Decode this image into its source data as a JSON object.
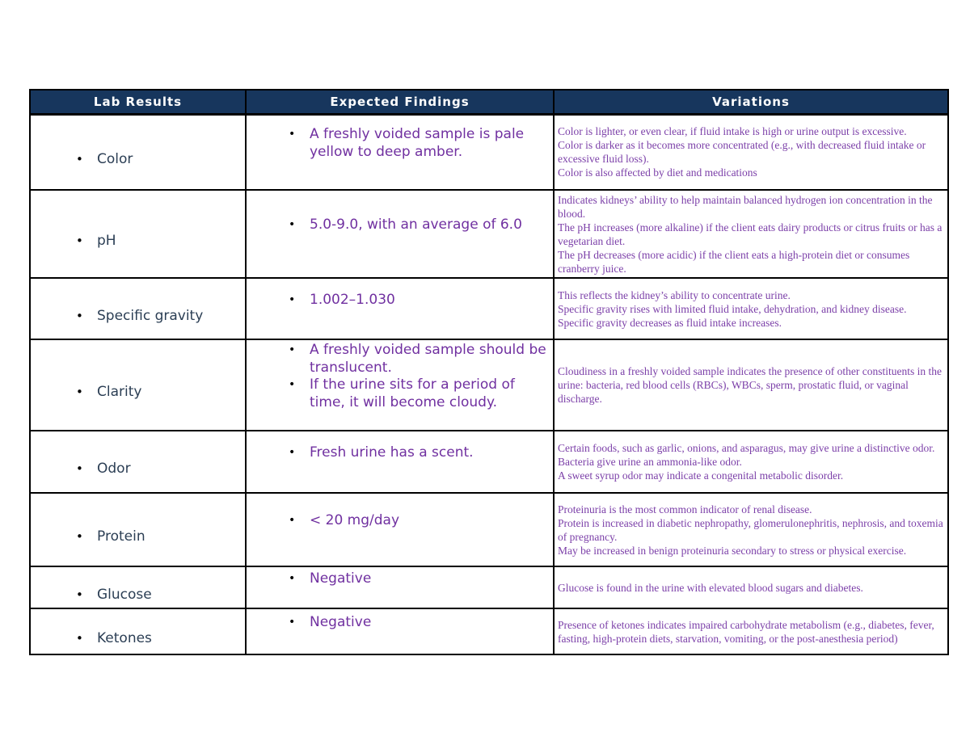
{
  "colors": {
    "header_bg": "#17365D",
    "header_text": "#FFFFFF",
    "label_color": "#2B3E54",
    "findings_color": "#7030A0",
    "variations_color": "#7B3FA8",
    "border_color": "#000000",
    "page_bg": "#FFFFFF"
  },
  "table": {
    "columns": [
      {
        "label": "Lab Results"
      },
      {
        "label": "Expected Findings"
      },
      {
        "label": "Variations"
      }
    ],
    "rows": [
      {
        "label": "Color",
        "findings": [
          "A freshly voided sample is pale yellow to deep amber."
        ],
        "variations": [
          "Color is lighter, or even clear, if fluid intake is high or urine output is excessive.",
          "Color is darker as it becomes more concentrated (e.g., with decreased fluid intake or excessive fluid loss).",
          "Color is also affected by diet and medications"
        ]
      },
      {
        "label": "pH",
        "findings": [
          "5.0-9.0, with an average of 6.0"
        ],
        "variations": [
          "Indicates kidneys’ ability to help maintain balanced hydrogen ion concentration in the blood.",
          "The pH increases (more alkaline) if the client eats dairy products or citrus fruits or has a vegetarian diet.",
          "The pH decreases (more acidic) if the client eats a high-protein diet or consumes cranberry juice."
        ]
      },
      {
        "label": "Specific gravity",
        "findings": [
          "1.002–1.030"
        ],
        "variations": [
          "This reflects the kidney’s ability to concentrate urine.",
          "Specific gravity rises with limited fluid intake, dehydration, and kidney disease.",
          "Specific gravity decreases as fluid intake increases."
        ]
      },
      {
        "label": "Clarity",
        "findings": [
          "A freshly voided sample should be translucent.",
          "If the urine sits for a period of time, it will become cloudy."
        ],
        "variations": [
          "Cloudiness in a freshly voided sample indicates the presence of other constituents in the urine: bacteria, red blood cells (RBCs), WBCs, sperm, prostatic fluid, or vaginal discharge."
        ]
      },
      {
        "label": "Odor",
        "findings": [
          "Fresh urine has a scent."
        ],
        "variations": [
          "Certain foods, such as garlic, onions, and asparagus, may give urine a distinctive odor.",
          "Bacteria give urine an ammonia-like odor.",
          "A sweet syrup odor may indicate a congenital metabolic disorder."
        ]
      },
      {
        "label": "Protein",
        "findings": [
          "< 20 mg/day"
        ],
        "variations": [
          "Proteinuria is the most common indicator of renal disease.",
          "Protein is increased in diabetic nephropathy, glomerulonephritis, nephrosis, and toxemia of pregnancy.",
          "May be increased in benign proteinuria secondary to stress or physical exercise."
        ]
      },
      {
        "label": "Glucose",
        "findings": [
          "Negative"
        ],
        "variations": [
          "Glucose is found in the urine with elevated blood sugars and diabetes."
        ]
      },
      {
        "label": "Ketones",
        "findings": [
          "Negative"
        ],
        "variations": [
          "Presence of ketones indicates impaired carbohydrate metabolism (e.g., diabetes, fever, fasting, high-protein diets, starvation, vomiting, or the post-anesthesia period)"
        ]
      }
    ]
  }
}
